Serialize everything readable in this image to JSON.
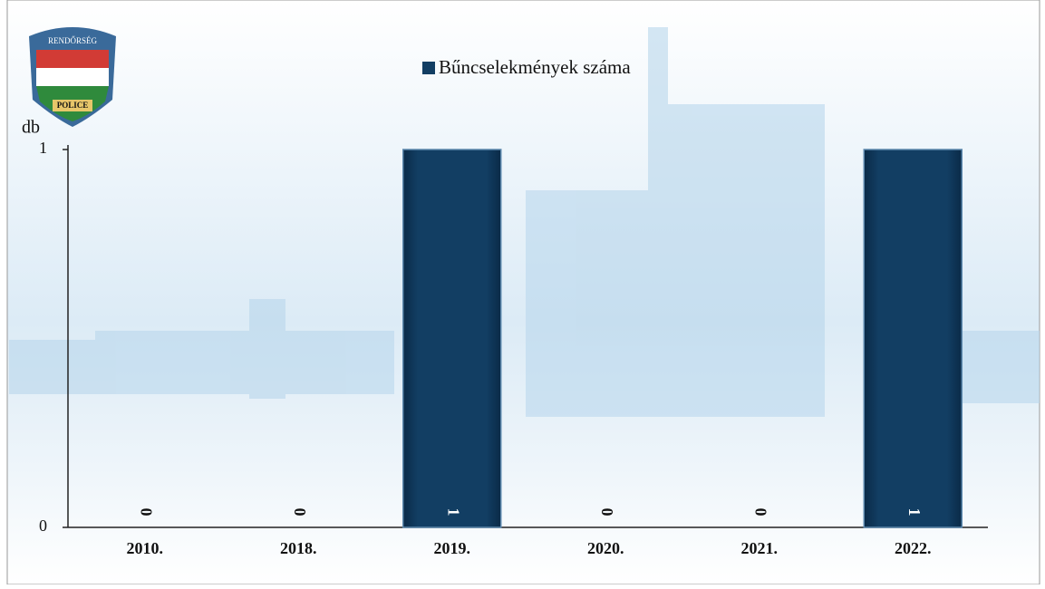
{
  "chart_data": {
    "type": "bar",
    "y_label": "db",
    "badge_top": "RENDŐRSÉG",
    "badge_bottom": "POLICE",
    "categories": [
      "2010.",
      "2018.",
      "2019.",
      "2020.",
      "2021.",
      "2022."
    ],
    "series": [
      {
        "name": "Bűncselekmények száma",
        "color": "#123e63",
        "values": [
          0,
          0,
          1,
          0,
          0,
          1
        ]
      }
    ],
    "ylim": [
      0,
      1
    ],
    "yticks": [
      0,
      1
    ],
    "legend": "top"
  }
}
